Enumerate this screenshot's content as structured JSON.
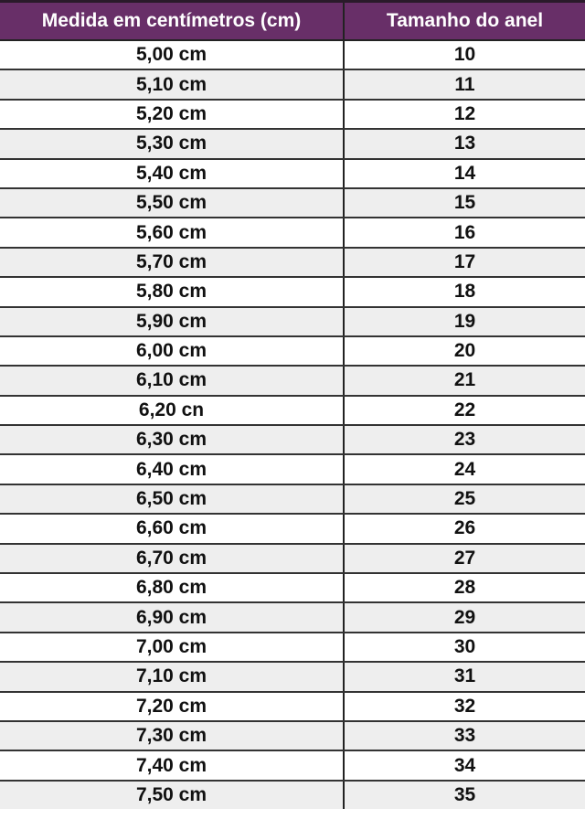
{
  "header": {
    "col1": "Medida em centímetros (cm)",
    "col2": "Tamanho do anel",
    "color": "#682f68"
  },
  "rows": [
    {
      "cm": "5,00 cm",
      "size": "10"
    },
    {
      "cm": "5,10 cm",
      "size": "11"
    },
    {
      "cm": "5,20 cm",
      "size": "12"
    },
    {
      "cm": "5,30 cm",
      "size": "13"
    },
    {
      "cm": "5,40 cm",
      "size": "14"
    },
    {
      "cm": "5,50 cm",
      "size": "15"
    },
    {
      "cm": "5,60 cm",
      "size": "16"
    },
    {
      "cm": "5,70 cm",
      "size": "17"
    },
    {
      "cm": "5,80 cm",
      "size": "18"
    },
    {
      "cm": "5,90 cm",
      "size": "19"
    },
    {
      "cm": "6,00 cm",
      "size": "20"
    },
    {
      "cm": "6,10 cm",
      "size": "21"
    },
    {
      "cm": "6,20 cn",
      "size": "22"
    },
    {
      "cm": "6,30 cm",
      "size": "23"
    },
    {
      "cm": "6,40 cm",
      "size": "24"
    },
    {
      "cm": "6,50 cm",
      "size": "25"
    },
    {
      "cm": "6,60 cm",
      "size": "26"
    },
    {
      "cm": "6,70 cm",
      "size": "27"
    },
    {
      "cm": "6,80 cm",
      "size": "28"
    },
    {
      "cm": "6,90 cm",
      "size": "29"
    },
    {
      "cm": "7,00 cm",
      "size": "30"
    },
    {
      "cm": "7,10 cm",
      "size": "31"
    },
    {
      "cm": "7,20 cm",
      "size": "32"
    },
    {
      "cm": "7,30 cm",
      "size": "33"
    },
    {
      "cm": "7,40 cm",
      "size": "34"
    },
    {
      "cm": "7,50 cm",
      "size": "35"
    }
  ]
}
